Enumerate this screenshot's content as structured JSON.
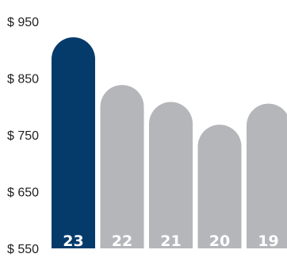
{
  "chart_data": {
    "type": "bar",
    "title": "",
    "xlabel": "",
    "ylabel": "",
    "categories": [
      "23",
      "22",
      "21",
      "20",
      "19"
    ],
    "values": [
      922,
      838,
      808,
      768,
      805
    ],
    "y_ticks": [
      "$ 550",
      "$ 650",
      "$ 750",
      "$ 850",
      "$ 950"
    ],
    "ylim": [
      550,
      950
    ],
    "grid": false,
    "colors": {
      "highlight": "#053b6b",
      "default": "#b5b6b9"
    },
    "highlight_index": 0
  }
}
